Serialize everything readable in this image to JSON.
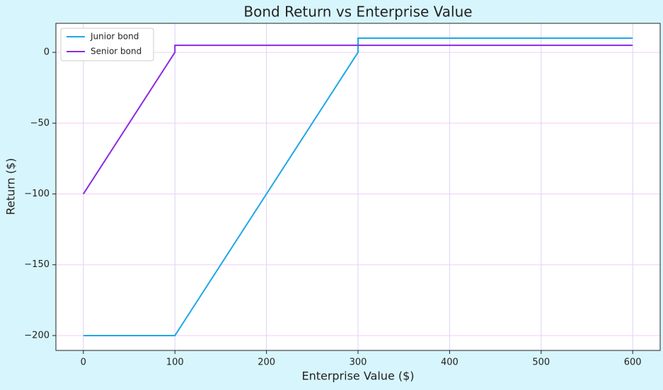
{
  "chart_data": {
    "type": "line",
    "title": "Bond Return vs Enterprise Value",
    "xlabel": "Enterprise Value ($)",
    "ylabel": "Return ($)",
    "series": [
      {
        "name": "Junior bond",
        "color": "#1ea7e8",
        "x": [
          0,
          100,
          300,
          300,
          600
        ],
        "values": [
          -200,
          -200,
          0,
          10,
          10
        ]
      },
      {
        "name": "Senior bond",
        "color": "#8a2be2",
        "x": [
          0,
          100,
          100,
          600
        ],
        "values": [
          -100,
          0,
          5,
          5
        ]
      }
    ],
    "xlim": [
      -30,
      630
    ],
    "xticks": [
      0,
      100,
      200,
      300,
      400,
      500,
      600
    ],
    "ylim": [
      -210.5,
      20.5
    ],
    "yticks": [
      {
        "value": -200,
        "label": "−200"
      },
      {
        "value": -150,
        "label": "−150"
      },
      {
        "value": -100,
        "label": "−100"
      },
      {
        "value": -50,
        "label": "−50"
      },
      0
    ],
    "grid": true,
    "legend": "upper left"
  }
}
